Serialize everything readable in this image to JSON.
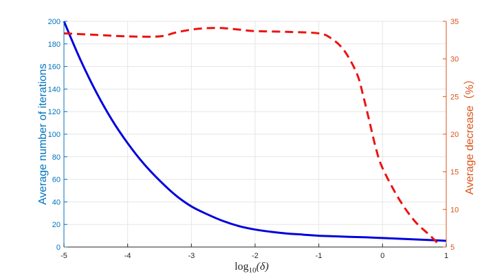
{
  "chart_data": {
    "type": "line",
    "xlabel": {
      "base": "log",
      "sub": "10",
      "arg": "(δ)"
    },
    "ylabel_left": "Average number of iterations",
    "ylabel_right": "Average decrease（%）",
    "xlim": [
      -5,
      1
    ],
    "ylim_left": [
      0,
      200
    ],
    "ylim_right": [
      5,
      35
    ],
    "x_ticks": [
      -5,
      -4,
      -3,
      -2,
      -1,
      0,
      1
    ],
    "y_ticks_left": [
      0,
      20,
      40,
      60,
      80,
      100,
      120,
      140,
      160,
      180,
      200
    ],
    "y_ticks_right": [
      5,
      10,
      15,
      20,
      25,
      30,
      35
    ],
    "grid": true,
    "series": [
      {
        "axis": "left",
        "style": "solid",
        "color": "#0000DD",
        "x": [
          -5,
          -4.75,
          -4.5,
          -4.25,
          -4,
          -3.75,
          -3.5,
          -3.25,
          -3,
          -2.75,
          -2.5,
          -2.25,
          -2,
          -1.75,
          -1.5,
          -1.25,
          -1,
          -0.75,
          -0.5,
          -0.25,
          0,
          0.25,
          0.5,
          0.75,
          1
        ],
        "y": [
          200,
          167,
          138,
          113,
          92,
          74,
          59,
          46,
          36,
          29,
          23,
          18.5,
          15.5,
          13.5,
          12,
          11,
          10,
          9.5,
          9,
          8.6,
          8,
          7.4,
          6.8,
          6.2,
          5.5
        ]
      },
      {
        "axis": "right",
        "style": "dashed",
        "color": "#EE1111",
        "x": [
          -5,
          -4.5,
          -4,
          -3.5,
          -3.25,
          -3,
          -2.75,
          -2.5,
          -2.25,
          -2,
          -1.5,
          -1,
          -0.8,
          -0.6,
          -0.4,
          -0.3,
          -0.2,
          -0.1,
          0,
          0.25,
          0.5,
          0.75,
          0.9
        ],
        "y": [
          33.4,
          33.2,
          33.0,
          33.0,
          33.5,
          33.9,
          34.1,
          34.1,
          33.9,
          33.7,
          33.6,
          33.4,
          32.7,
          31.1,
          28.0,
          25.0,
          21.5,
          18.0,
          15.5,
          11.5,
          8.5,
          6.5,
          5.2
        ]
      }
    ]
  }
}
